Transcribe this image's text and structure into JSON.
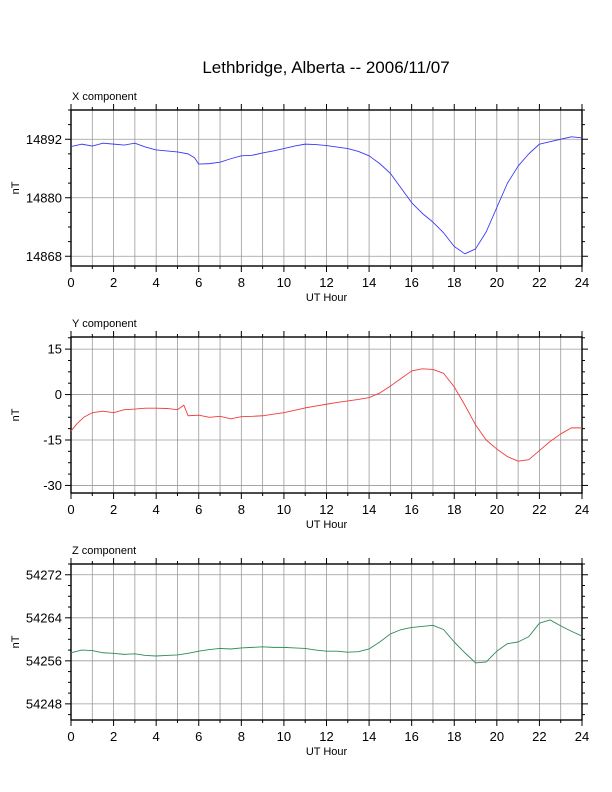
{
  "title": "Lethbridge, Alberta -- 2006/11/07",
  "chart_data": [
    {
      "type": "line",
      "title": "X component",
      "xlabel": "UT Hour",
      "ylabel": "nT",
      "xlim": [
        0,
        24
      ],
      "ylim": [
        14866,
        14898
      ],
      "xticks": [
        0,
        2,
        4,
        6,
        8,
        10,
        12,
        14,
        16,
        18,
        20,
        22,
        24
      ],
      "yticks": [
        14868,
        14880,
        14892
      ],
      "grid": true,
      "color": "#3b3bf5",
      "series": [
        {
          "x": [
            0,
            0.5,
            1,
            1.5,
            2,
            2.5,
            3,
            3.5,
            4,
            4.5,
            5,
            5.5,
            5.8,
            6,
            6.5,
            7,
            7.5,
            8,
            8.5,
            9,
            9.5,
            10,
            10.5,
            11,
            11.5,
            12,
            12.5,
            13,
            13.5,
            14,
            14.5,
            15,
            15.5,
            16,
            16.5,
            17,
            17.5,
            18,
            18.5,
            19,
            19.5,
            20,
            20.5,
            21,
            21.5,
            22,
            22.5,
            23,
            23.5,
            24
          ],
          "values": [
            14890.5,
            14891,
            14890.6,
            14891.2,
            14891,
            14890.8,
            14891.2,
            14890.4,
            14889.8,
            14889.6,
            14889.4,
            14889,
            14888.2,
            14886.9,
            14887,
            14887.3,
            14888,
            14888.6,
            14888.7,
            14889.2,
            14889.6,
            14890.1,
            14890.6,
            14891,
            14890.9,
            14890.7,
            14890.4,
            14890.1,
            14889.5,
            14888.6,
            14887,
            14885,
            14882,
            14879,
            14876.8,
            14875,
            14872.8,
            14870,
            14868.5,
            14869.5,
            14873,
            14878,
            14883,
            14886.5,
            14889,
            14891,
            14891.5,
            14892,
            14892.5,
            14892.3
          ]
        }
      ]
    },
    {
      "type": "line",
      "title": "Y component",
      "xlabel": "UT Hour",
      "ylabel": "nT",
      "xlim": [
        0,
        24
      ],
      "ylim": [
        -32.5,
        19
      ],
      "xticks": [
        0,
        2,
        4,
        6,
        8,
        10,
        12,
        14,
        16,
        18,
        20,
        22,
        24
      ],
      "yticks": [
        -30,
        -15,
        0,
        15
      ],
      "grid": true,
      "color": "#f03c3c",
      "series": [
        {
          "x": [
            0,
            0.3,
            0.6,
            1,
            1.5,
            2,
            2.5,
            3,
            3.5,
            4,
            4.5,
            5,
            5.3,
            5.5,
            6,
            6.5,
            7,
            7.5,
            8,
            8.5,
            9,
            9.5,
            10,
            10.5,
            11,
            11.5,
            12,
            12.5,
            13,
            13.5,
            14,
            14.5,
            15,
            15.5,
            16,
            16.5,
            17,
            17.5,
            18,
            18.5,
            19,
            19.5,
            20,
            20.5,
            21,
            21.5,
            22,
            22.5,
            23,
            23.5,
            24
          ],
          "values": [
            -12,
            -9.5,
            -7.5,
            -6,
            -5.5,
            -6,
            -5,
            -4.8,
            -4.5,
            -4.5,
            -4.6,
            -5,
            -3.5,
            -7,
            -6.8,
            -7.5,
            -7.2,
            -8,
            -7.3,
            -7.2,
            -7,
            -6.5,
            -6,
            -5.2,
            -4.4,
            -3.8,
            -3.2,
            -2.6,
            -2.1,
            -1.6,
            -1,
            0.5,
            2.8,
            5.3,
            7.8,
            8.5,
            8.3,
            7,
            2.5,
            -3.5,
            -10,
            -15,
            -18,
            -20.5,
            -22,
            -21.5,
            -18.5,
            -15.5,
            -13,
            -11,
            -11
          ]
        }
      ]
    },
    {
      "type": "line",
      "title": "Z component",
      "xlabel": "UT Hour",
      "ylabel": "nT",
      "xlim": [
        0,
        24
      ],
      "ylim": [
        54245,
        54274
      ],
      "xticks": [
        0,
        2,
        4,
        6,
        8,
        10,
        12,
        14,
        16,
        18,
        20,
        22,
        24
      ],
      "yticks": [
        54248,
        54256,
        54264,
        54272
      ],
      "grid": true,
      "color": "#2e8b57",
      "series": [
        {
          "x": [
            0,
            0.5,
            1,
            1.5,
            2,
            2.5,
            3,
            3.5,
            4,
            4.5,
            5,
            5.5,
            6,
            6.5,
            7,
            7.5,
            8,
            8.5,
            9,
            9.5,
            10,
            10.5,
            11,
            11.5,
            12,
            12.5,
            13,
            13.5,
            14,
            14.5,
            15,
            15.5,
            16,
            16.5,
            17,
            17.5,
            18,
            18.5,
            19,
            19.5,
            20,
            20.5,
            21,
            21.5,
            22,
            22.5,
            23,
            23.5,
            24
          ],
          "values": [
            54257.5,
            54258,
            54257.9,
            54257.5,
            54257.4,
            54257.2,
            54257.3,
            54257,
            54256.9,
            54257,
            54257.1,
            54257.4,
            54257.8,
            54258.1,
            54258.3,
            54258.2,
            54258.4,
            54258.5,
            54258.6,
            54258.5,
            54258.5,
            54258.4,
            54258.3,
            54258,
            54257.8,
            54257.8,
            54257.6,
            54257.7,
            54258.2,
            54259.5,
            54261,
            54261.8,
            54262.2,
            54262.4,
            54262.6,
            54261.8,
            54259.5,
            54257.5,
            54255.6,
            54255.8,
            54257.8,
            54259.2,
            54259.5,
            54260.5,
            54263,
            54263.6,
            54262.5,
            54261.5,
            54260.6
          ]
        }
      ]
    }
  ]
}
